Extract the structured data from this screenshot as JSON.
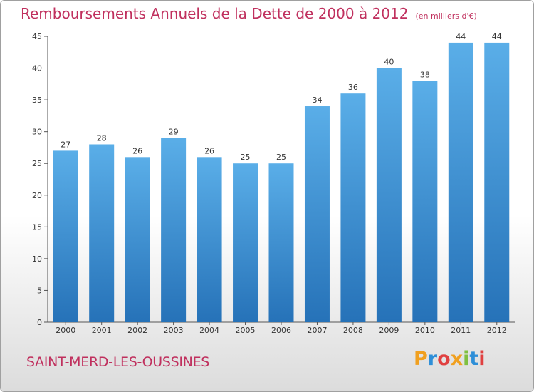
{
  "header": {
    "title": "Remboursements Annuels de la Dette de 2000 à 2012",
    "subtitle": "(en milliers d'€)"
  },
  "footer": {
    "commune": "SAINT-MERD-LES-OUSSINES",
    "logo": "Proxiti"
  },
  "colors": {
    "bar_top": "#5aaee8",
    "bar_bottom": "#2672b8",
    "title": "#c0305e",
    "axis": "#555555",
    "grid": "#cccccc"
  },
  "chart_data": {
    "type": "bar",
    "title": "Remboursements Annuels de la Dette de 2000 à 2012",
    "subtitle": "(en milliers d'€)",
    "xlabel": "",
    "ylabel": "",
    "categories": [
      "2000",
      "2001",
      "2002",
      "2003",
      "2004",
      "2005",
      "2006",
      "2007",
      "2008",
      "2009",
      "2010",
      "2011",
      "2012"
    ],
    "values": [
      27,
      28,
      26,
      29,
      26,
      25,
      25,
      34,
      36,
      40,
      38,
      44,
      44
    ],
    "ylim": [
      0,
      45
    ],
    "yticks": [
      0,
      5,
      10,
      15,
      20,
      25,
      30,
      35,
      40,
      45
    ],
    "grid": false,
    "data_labels": true
  }
}
